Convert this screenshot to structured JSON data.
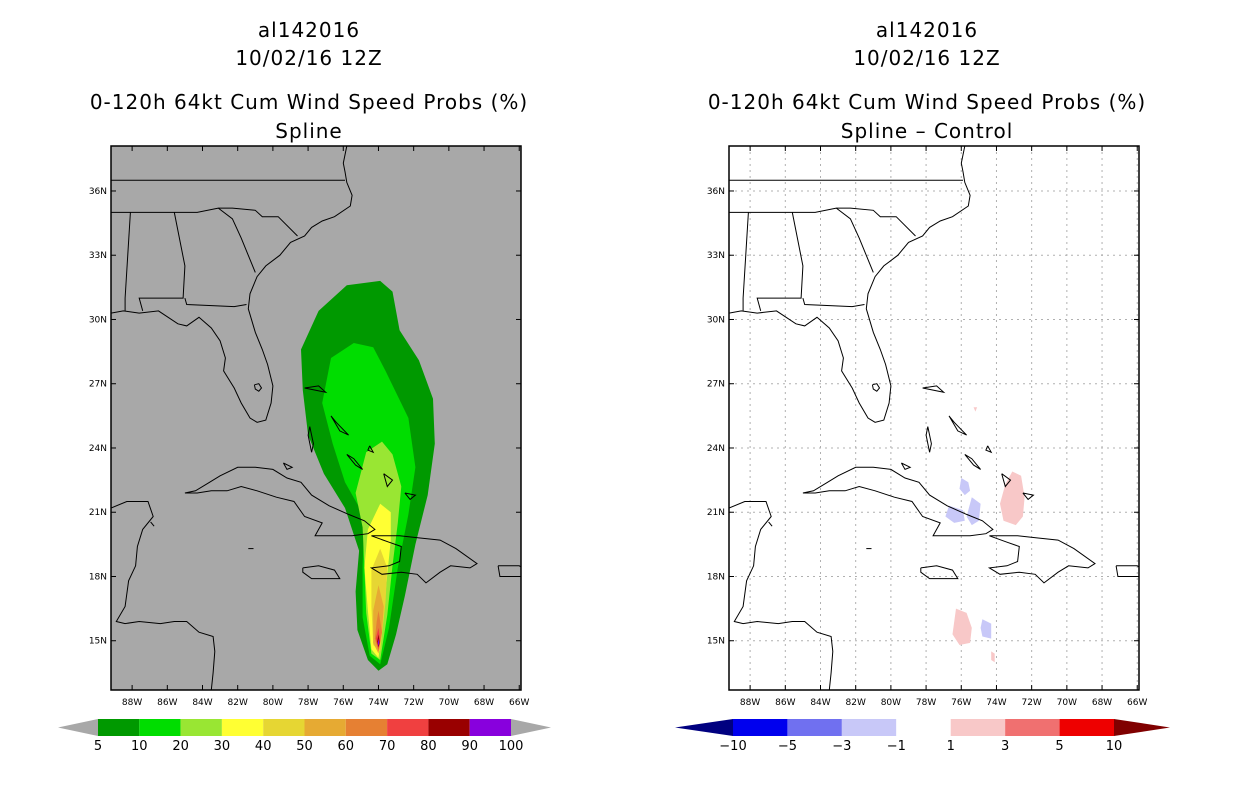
{
  "left": {
    "title_storm": "al142016",
    "title_date": "10/02/16 12Z",
    "title_product": "0-120h 64kt Cum Wind Speed Probs (%)",
    "title_sub": "Spline",
    "lat_labels": [
      "36N",
      "33N",
      "30N",
      "27N",
      "24N",
      "21N",
      "18N",
      "15N"
    ],
    "lon_labels": [
      "88W",
      "86W",
      "84W",
      "82W",
      "80W",
      "78W",
      "76W",
      "74W",
      "72W",
      "70W",
      "68W",
      "66W"
    ],
    "colorbar": {
      "labels": [
        "5",
        "10",
        "20",
        "30",
        "40",
        "50",
        "60",
        "70",
        "80",
        "90",
        "100"
      ],
      "colors": [
        "#009900",
        "#00dd00",
        "#99e633",
        "#ffff33",
        "#e6d633",
        "#e6aa33",
        "#e68033",
        "#f04040",
        "#990000",
        "#8800dd"
      ],
      "arrow_color": "#a8a8a8"
    },
    "background": "#a8a8a8"
  },
  "right": {
    "title_storm": "al142016",
    "title_date": "10/02/16 12Z",
    "title_product": "0-120h 64kt Cum Wind Speed Probs (%)",
    "title_sub": "Spline – Control",
    "lat_labels": [
      "36N",
      "33N",
      "30N",
      "27N",
      "24N",
      "21N",
      "18N",
      "15N"
    ],
    "lon_labels": [
      "88W",
      "86W",
      "84W",
      "82W",
      "80W",
      "78W",
      "76W",
      "74W",
      "72W",
      "70W",
      "68W",
      "66W"
    ],
    "colorbar": {
      "labels": [
        "−10",
        "−5",
        "−3",
        "−1",
        "1",
        "3",
        "5",
        "10"
      ],
      "colors": [
        "#0000ee",
        "#7070f0",
        "#c8c8f8",
        "#ffffff",
        "#f8c8c8",
        "#f07070",
        "#ee0000"
      ],
      "arrow_left": "#000080",
      "arrow_right": "#800000"
    },
    "background": "#ffffff"
  }
}
